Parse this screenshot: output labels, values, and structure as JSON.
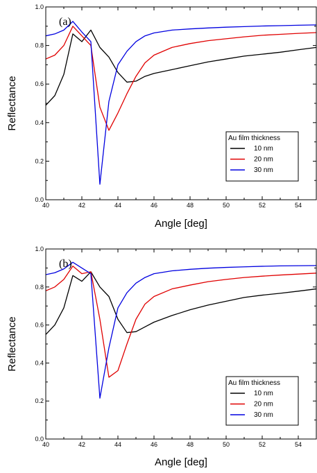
{
  "chart_data": [
    {
      "type": "line",
      "panel_label": "(a)",
      "xlabel": "Angle [deg]",
      "ylabel": "Reflectance",
      "xlim": [
        40,
        55
      ],
      "ylim": [
        0.0,
        1.0
      ],
      "xticks": [
        "40",
        "42",
        "44",
        "46",
        "48",
        "50",
        "52",
        "54"
      ],
      "yticks": [
        "0.0",
        "0.2",
        "0.4",
        "0.6",
        "0.8",
        "1.0"
      ],
      "grid": false,
      "legend": {
        "title": "Au film thickness",
        "placement": "right-middle"
      },
      "series": [
        {
          "name": "10 nm",
          "color": "#000000",
          "x": [
            40,
            40.5,
            41,
            41.5,
            42,
            42.5,
            43,
            43.5,
            44,
            44.5,
            45,
            45.5,
            46,
            47,
            48,
            49,
            50,
            51,
            52,
            53,
            54,
            55
          ],
          "y": [
            0.49,
            0.54,
            0.65,
            0.86,
            0.82,
            0.88,
            0.79,
            0.74,
            0.66,
            0.61,
            0.615,
            0.64,
            0.655,
            0.675,
            0.695,
            0.715,
            0.73,
            0.745,
            0.755,
            0.765,
            0.778,
            0.79
          ]
        },
        {
          "name": "20 nm",
          "color": "#e00000",
          "x": [
            40,
            40.5,
            41,
            41.5,
            42,
            42.5,
            43,
            43.5,
            44,
            44.5,
            45,
            45.5,
            46,
            47,
            48,
            49,
            50,
            51,
            52,
            53,
            54,
            55
          ],
          "y": [
            0.73,
            0.75,
            0.8,
            0.9,
            0.85,
            0.8,
            0.48,
            0.36,
            0.45,
            0.55,
            0.64,
            0.71,
            0.75,
            0.79,
            0.81,
            0.825,
            0.835,
            0.845,
            0.853,
            0.858,
            0.863,
            0.867
          ]
        },
        {
          "name": "30 nm",
          "color": "#0000e0",
          "x": [
            40,
            40.5,
            41,
            41.5,
            42,
            42.5,
            43,
            43.5,
            44,
            44.5,
            45,
            45.5,
            46,
            47,
            48,
            49,
            50,
            51,
            52,
            53,
            54,
            55
          ],
          "y": [
            0.85,
            0.86,
            0.88,
            0.925,
            0.87,
            0.82,
            0.08,
            0.51,
            0.7,
            0.77,
            0.82,
            0.85,
            0.865,
            0.88,
            0.886,
            0.891,
            0.895,
            0.898,
            0.901,
            0.903,
            0.905,
            0.907
          ]
        }
      ]
    },
    {
      "type": "line",
      "panel_label": "(b)",
      "xlabel": "Angle [deg]",
      "ylabel": "Reflectance",
      "xlim": [
        40,
        55
      ],
      "ylim": [
        0.0,
        1.0
      ],
      "xticks": [
        "40",
        "42",
        "44",
        "46",
        "48",
        "50",
        "52",
        "54"
      ],
      "yticks": [
        "0.0",
        "0.2",
        "0.4",
        "0.6",
        "0.8",
        "1.0"
      ],
      "grid": false,
      "legend": {
        "title": "Au film thickness",
        "placement": "right-middle"
      },
      "series": [
        {
          "name": "10 nm",
          "color": "#000000",
          "x": [
            40,
            40.5,
            41,
            41.5,
            42,
            42.5,
            43,
            43.5,
            44,
            44.5,
            45,
            45.5,
            46,
            47,
            48,
            49,
            50,
            51,
            52,
            53,
            54,
            55
          ],
          "y": [
            0.55,
            0.6,
            0.69,
            0.86,
            0.83,
            0.88,
            0.8,
            0.75,
            0.63,
            0.56,
            0.565,
            0.59,
            0.615,
            0.65,
            0.68,
            0.705,
            0.725,
            0.745,
            0.757,
            0.767,
            0.778,
            0.79
          ]
        },
        {
          "name": "20 nm",
          "color": "#e00000",
          "x": [
            40,
            40.5,
            41,
            41.5,
            42,
            42.5,
            43,
            43.5,
            44,
            44.5,
            45,
            45.5,
            46,
            47,
            48,
            49,
            50,
            51,
            52,
            53,
            54,
            55
          ],
          "y": [
            0.78,
            0.8,
            0.84,
            0.91,
            0.87,
            0.88,
            0.63,
            0.325,
            0.36,
            0.5,
            0.63,
            0.71,
            0.75,
            0.79,
            0.81,
            0.828,
            0.84,
            0.85,
            0.857,
            0.863,
            0.868,
            0.873
          ]
        },
        {
          "name": "30 nm",
          "color": "#0000e0",
          "x": [
            40,
            40.5,
            41,
            41.5,
            42,
            42.5,
            43,
            43.5,
            44,
            44.5,
            45,
            45.5,
            46,
            47,
            48,
            49,
            50,
            51,
            52,
            53,
            54,
            55
          ],
          "y": [
            0.865,
            0.875,
            0.895,
            0.93,
            0.9,
            0.87,
            0.215,
            0.48,
            0.69,
            0.77,
            0.82,
            0.85,
            0.87,
            0.885,
            0.893,
            0.899,
            0.903,
            0.906,
            0.909,
            0.911,
            0.912,
            0.913
          ]
        }
      ]
    }
  ]
}
